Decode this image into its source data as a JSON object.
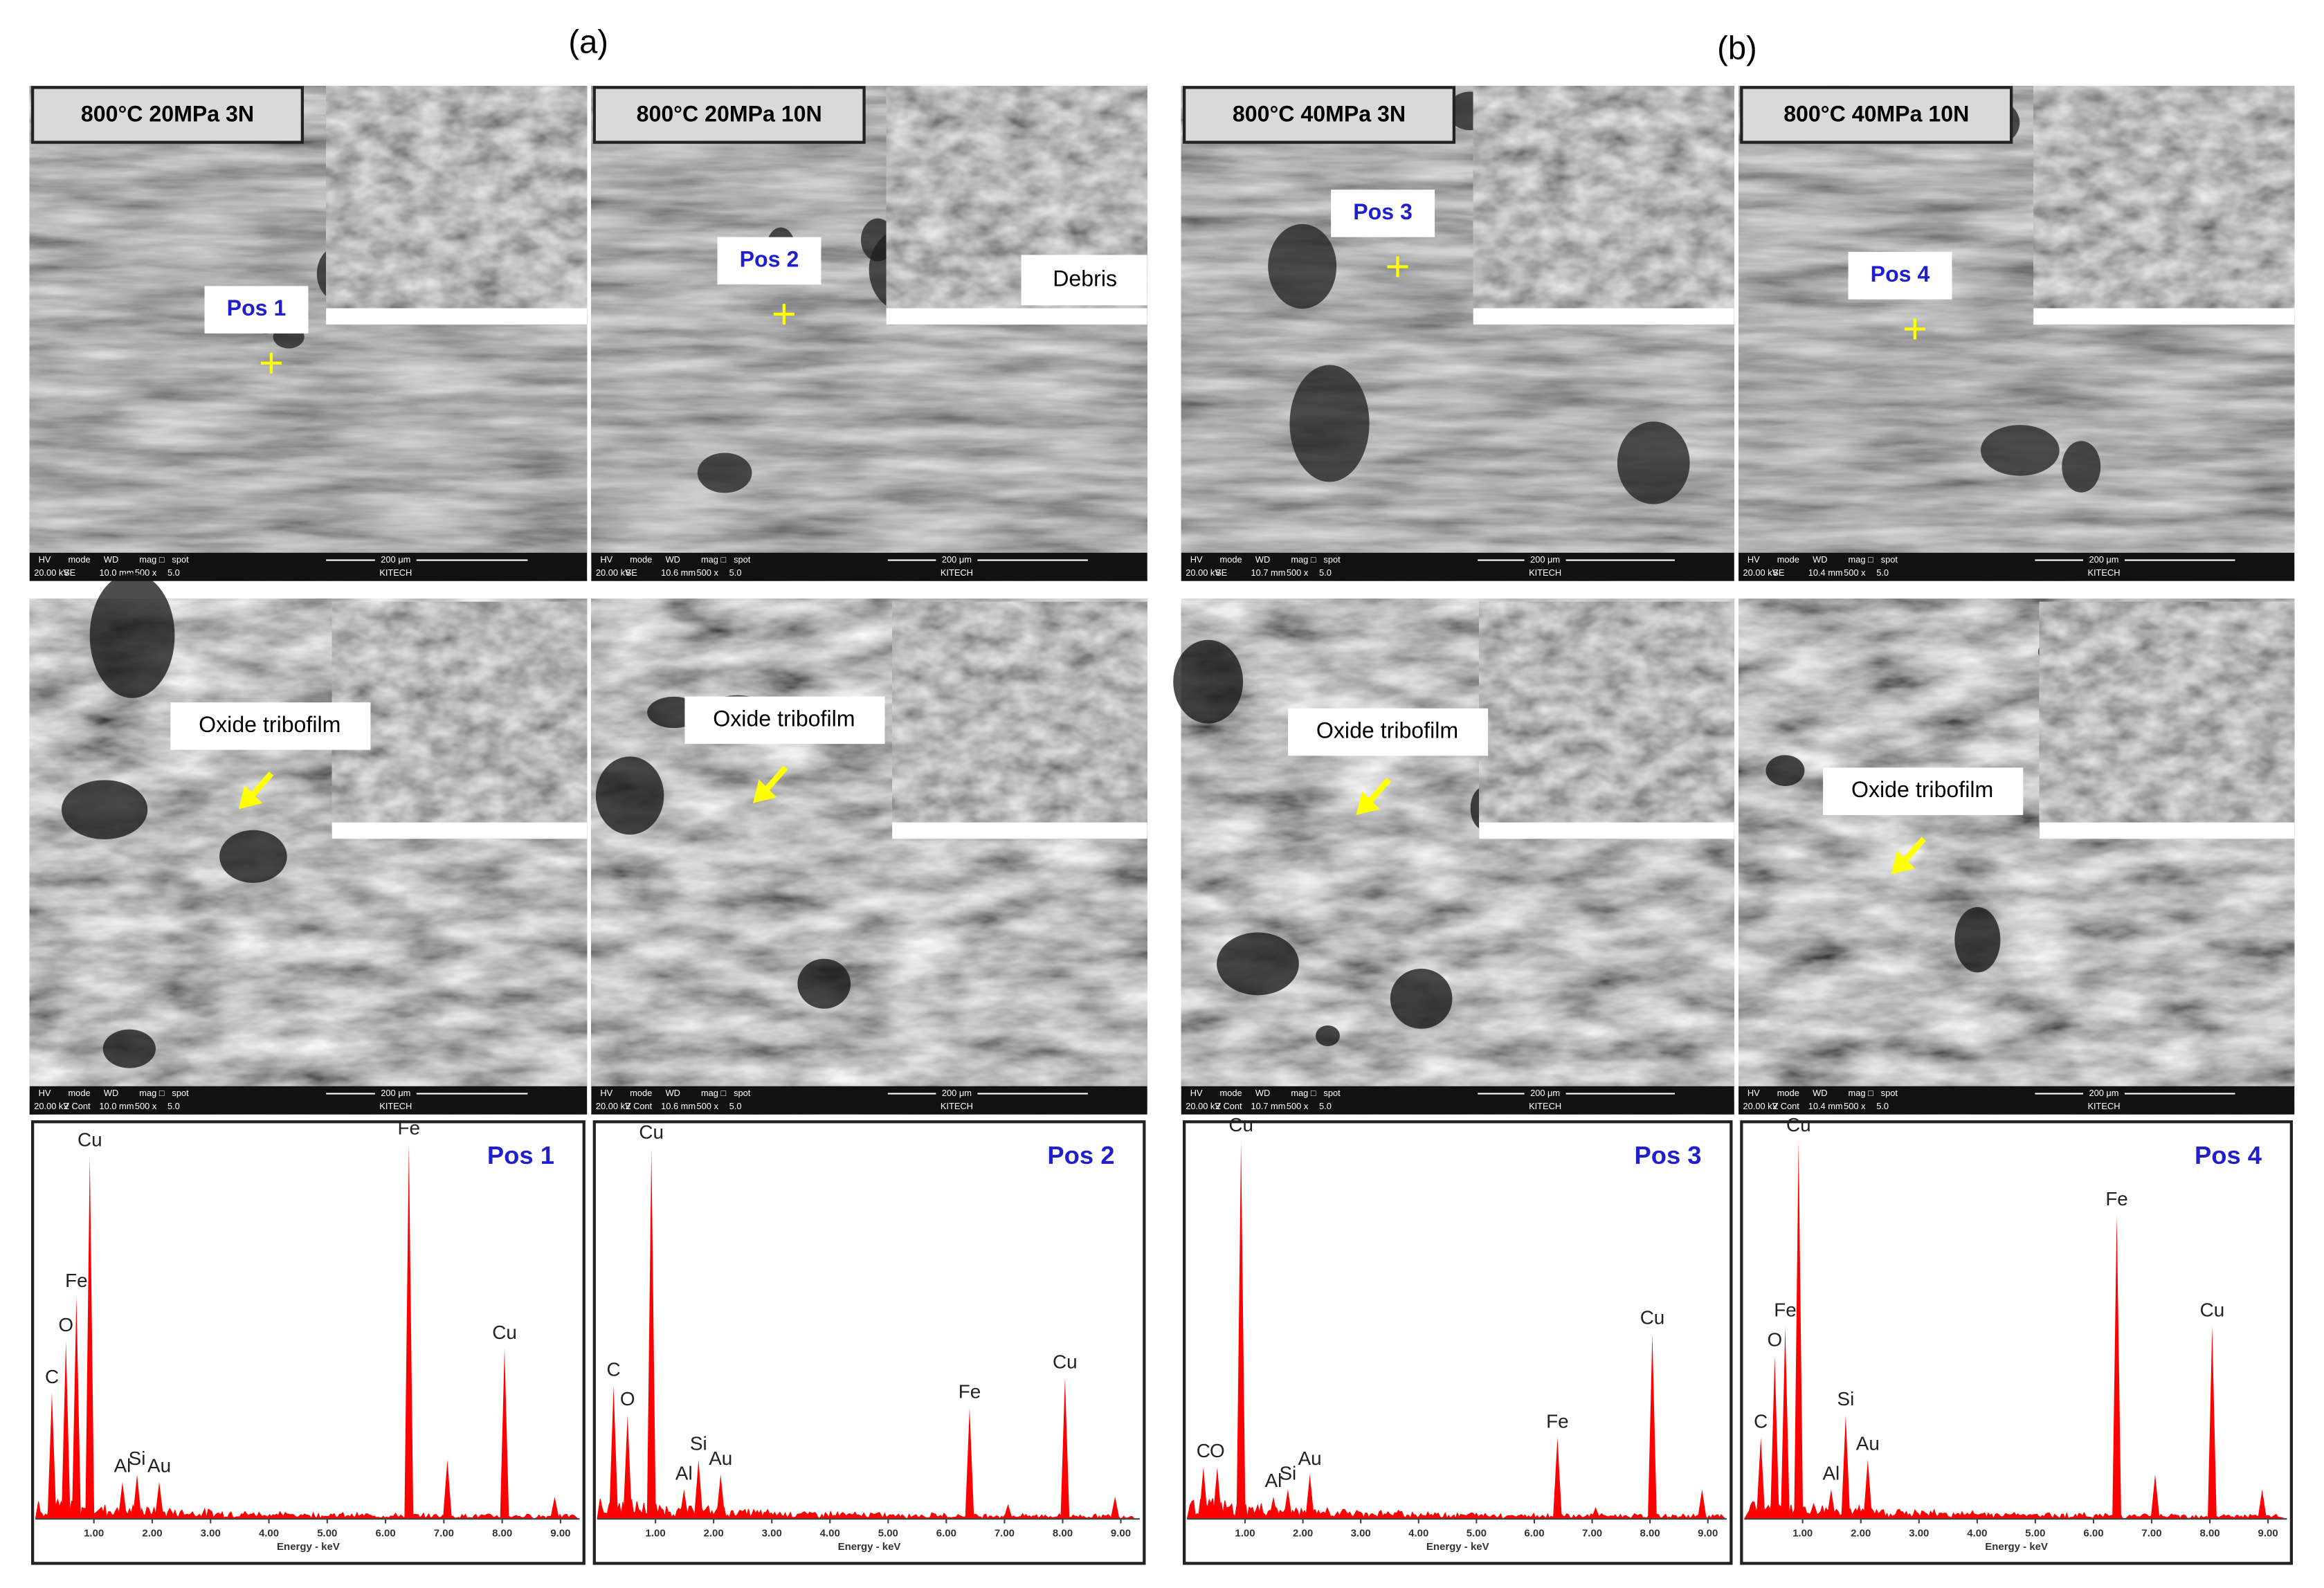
{
  "figure": {
    "panel_labels": [
      "(a)",
      "(b)"
    ],
    "info_header": [
      "HV",
      "mode",
      "WD",
      "mag □",
      "spot",
      "200 μm"
    ],
    "columns": [
      {
        "condition": "800°C 20MPa 3N",
        "top": {
          "marker": "Pos 1",
          "info": [
            "20.00 kV",
            "SE",
            "10.0 mm",
            "500 x",
            "5.0",
            "KITECH"
          ]
        },
        "bottom": {
          "annotation": "Oxide tribofilm",
          "info": [
            "20.00 kV",
            "Z Cont",
            "10.0 mm",
            "500 x",
            "5.0",
            "KITECH"
          ]
        }
      },
      {
        "condition": "800°C 20MPa 10N",
        "top": {
          "marker": "Pos 2",
          "callout": "Debris",
          "info": [
            "20.00 kV",
            "SE",
            "10.6 mm",
            "500 x",
            "5.0",
            "KITECH"
          ]
        },
        "bottom": {
          "annotation": "Oxide tribofilm",
          "info": [
            "20.00 kV",
            "Z Cont",
            "10.6 mm",
            "500 x",
            "5.0",
            "KITECH"
          ]
        }
      },
      {
        "condition": "800°C 40MPa 3N",
        "top": {
          "marker": "Pos 3",
          "info": [
            "20.00 kV",
            "SE",
            "10.7 mm",
            "500 x",
            "5.0",
            "KITECH"
          ]
        },
        "bottom": {
          "annotation": "Oxide tribofilm",
          "info": [
            "20.00 kV",
            "Z Cont",
            "10.7 mm",
            "500 x",
            "5.0",
            "KITECH"
          ]
        }
      },
      {
        "condition": "800°C 40MPa 10N",
        "top": {
          "marker": "Pos 4",
          "info": [
            "20.00 kV",
            "SE",
            "10.4 mm",
            "500 x",
            "5.0",
            "KITECH"
          ]
        },
        "bottom": {
          "annotation": "Oxide tribofilm",
          "info": [
            "20.00 kV",
            "Z Cont",
            "10.4 mm",
            "500 x",
            "5.0",
            "KITECH"
          ]
        }
      }
    ]
  },
  "chart_data": [
    {
      "type": "spectrum",
      "title": "Pos 1",
      "xlabel": "Energy - keV",
      "color": "#ff0000",
      "x": [
        0.28,
        0.52,
        0.7,
        0.93,
        1.49,
        1.74,
        2.12,
        6.4,
        7.06,
        8.04,
        8.9
      ],
      "values": [
        85,
        120,
        150,
        245,
        25,
        30,
        25,
        253,
        40,
        115,
        15
      ],
      "peak_labels": [
        "C",
        "O",
        "Fe",
        "Cu",
        "Al",
        "Si",
        "Au",
        "Fe",
        null,
        "Cu",
        null
      ],
      "xlim": [
        0,
        9.3
      ],
      "xticks": [
        {
          "value": 1,
          "label": "1.00"
        },
        {
          "value": 2,
          "label": "2.00"
        },
        {
          "value": 3,
          "label": "3.00"
        },
        {
          "value": 4,
          "label": "4.00"
        },
        {
          "value": 5,
          "label": "5.00"
        },
        {
          "value": 6,
          "label": "6.00"
        },
        {
          "value": 7,
          "label": "7.00"
        },
        {
          "value": 8,
          "label": "8.00"
        },
        {
          "value": 9,
          "label": "9.00"
        }
      ]
    },
    {
      "type": "spectrum",
      "title": "Pos 2",
      "xlabel": "Energy - keV",
      "color": "#ff0000",
      "x": [
        0.28,
        0.52,
        0.93,
        1.49,
        1.74,
        2.12,
        6.4,
        7.06,
        8.04,
        8.9
      ],
      "values": [
        90,
        70,
        250,
        20,
        40,
        30,
        75,
        10,
        95,
        15
      ],
      "peak_labels": [
        "C",
        "O",
        "Cu",
        "Al",
        "Si",
        "Au",
        "Fe",
        null,
        "Cu",
        null
      ],
      "xlim": [
        0,
        9.3
      ],
      "xticks": [
        {
          "value": 1,
          "label": "1.00"
        },
        {
          "value": 2,
          "label": "2.00"
        },
        {
          "value": 3,
          "label": "3.00"
        },
        {
          "value": 4,
          "label": "4.00"
        },
        {
          "value": 5,
          "label": "5.00"
        },
        {
          "value": 6,
          "label": "6.00"
        },
        {
          "value": 7,
          "label": "7.00"
        },
        {
          "value": 8,
          "label": "8.00"
        },
        {
          "value": 9,
          "label": "9.00"
        }
      ]
    },
    {
      "type": "spectrum",
      "title": "Pos 3",
      "xlabel": "Energy - keV",
      "color": "#ff0000",
      "x": [
        0.28,
        0.52,
        0.93,
        1.49,
        1.74,
        2.12,
        6.4,
        7.06,
        8.04,
        8.9
      ],
      "values": [
        35,
        35,
        255,
        15,
        20,
        30,
        55,
        8,
        125,
        20
      ],
      "peak_labels": [
        "C",
        "O",
        "Cu",
        "Al",
        "Si",
        "Au",
        "Fe",
        null,
        "Cu",
        null
      ],
      "xlim": [
        0,
        9.3
      ],
      "xticks": [
        {
          "value": 1,
          "label": "1.00"
        },
        {
          "value": 2,
          "label": "2.00"
        },
        {
          "value": 3,
          "label": "3.00"
        },
        {
          "value": 4,
          "label": "4.00"
        },
        {
          "value": 5,
          "label": "5.00"
        },
        {
          "value": 6,
          "label": "6.00"
        },
        {
          "value": 7,
          "label": "7.00"
        },
        {
          "value": 8,
          "label": "8.00"
        },
        {
          "value": 9,
          "label": "9.00"
        }
      ]
    },
    {
      "type": "spectrum",
      "title": "Pos 4",
      "xlabel": "Energy - keV",
      "color": "#ff0000",
      "x": [
        0.28,
        0.52,
        0.7,
        0.93,
        1.49,
        1.74,
        2.12,
        6.4,
        7.06,
        8.04,
        8.9
      ],
      "values": [
        55,
        110,
        130,
        255,
        20,
        70,
        40,
        205,
        30,
        130,
        20
      ],
      "peak_labels": [
        "C",
        "O",
        "Fe",
        "Cu",
        "Al",
        "Si",
        "Au",
        "Fe",
        null,
        "Cu",
        null
      ],
      "xlim": [
        0,
        9.3
      ],
      "xticks": [
        {
          "value": 1,
          "label": "1.00"
        },
        {
          "value": 2,
          "label": "2.00"
        },
        {
          "value": 3,
          "label": "3.00"
        },
        {
          "value": 4,
          "label": "4.00"
        },
        {
          "value": 5,
          "label": "5.00"
        },
        {
          "value": 6,
          "label": "6.00"
        },
        {
          "value": 7,
          "label": "7.00"
        },
        {
          "value": 8,
          "label": "8.00"
        },
        {
          "value": 9,
          "label": "9.00"
        }
      ]
    }
  ]
}
